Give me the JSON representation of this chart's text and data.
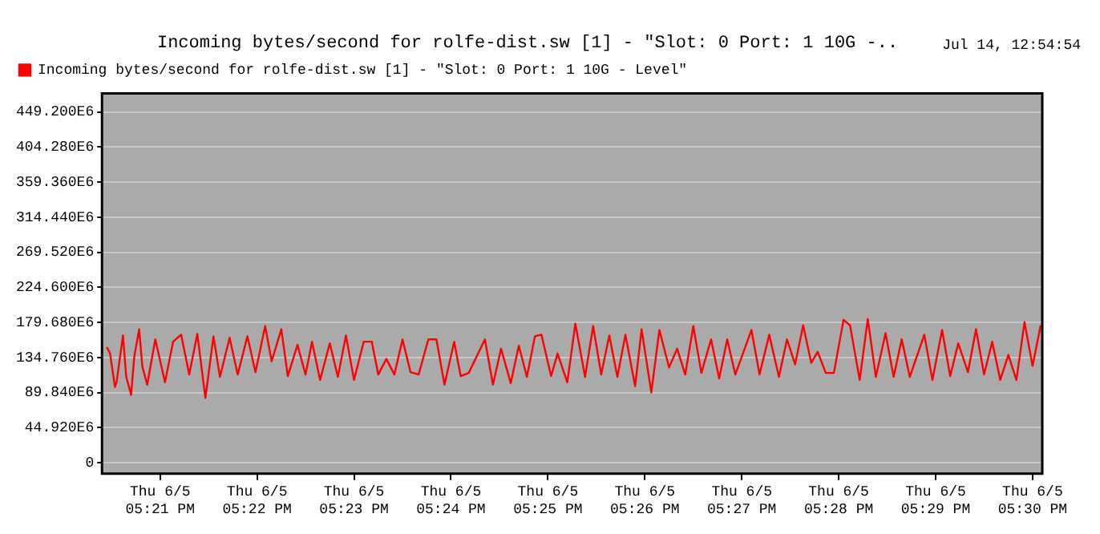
{
  "chart_data": {
    "type": "line",
    "title": "Incoming bytes/second for rolfe-dist.sw [1] - \"Slot: 0 Port: 1 10G -..",
    "annotations": [
      "Jul 14, 12:54:54"
    ],
    "x": [
      "--06-05T17:20:27",
      "--06-05T17:20:29",
      "--06-05T17:20:32",
      "--06-05T17:20:33",
      "--06-05T17:20:37",
      "--06-05T17:20:39",
      "--06-05T17:20:42",
      "--06-05T17:20:44",
      "--06-05T17:20:47",
      "--06-05T17:20:49",
      "--06-05T17:20:52",
      "--06-05T17:20:57",
      "--06-05T17:21:03",
      "--06-05T17:21:08",
      "--06-05T17:21:13",
      "--06-05T17:21:18",
      "--06-05T17:21:23",
      "--06-05T17:21:28",
      "--06-05T17:21:33",
      "--06-05T17:21:37",
      "--06-05T17:21:43",
      "--06-05T17:21:48",
      "--06-05T17:21:54",
      "--06-05T17:21:59",
      "--06-05T17:22:05",
      "--06-05T17:22:09",
      "--06-05T17:22:15",
      "--06-05T17:22:19",
      "--06-05T17:22:25",
      "--06-05T17:22:30",
      "--06-05T17:22:34",
      "--06-05T17:22:39",
      "--06-05T17:22:45",
      "--06-05T17:22:50",
      "--06-05T17:22:55",
      "--06-05T17:23:00",
      "--06-05T17:23:06",
      "--06-05T17:23:11",
      "--06-05T17:23:15",
      "--06-05T17:23:20",
      "--06-05T17:23:25",
      "--06-05T17:23:30",
      "--06-05T17:23:35",
      "--06-05T17:23:40",
      "--06-05T17:23:46",
      "--06-05T17:23:51",
      "--06-05T17:23:56",
      "--06-05T17:24:02",
      "--06-05T17:24:06",
      "--06-05T17:24:11",
      "--06-05T17:24:21",
      "--06-05T17:24:26",
      "--06-05T17:24:31",
      "--06-05T17:24:37",
      "--06-05T17:24:42",
      "--06-05T17:24:47",
      "--06-05T17:24:52",
      "--06-05T17:24:56",
      "--06-05T17:25:02",
      "--06-05T17:25:06",
      "--06-05T17:25:12",
      "--06-05T17:25:17",
      "--06-05T17:25:23",
      "--06-05T17:25:28",
      "--06-05T17:25:33",
      "--06-05T17:25:38",
      "--06-05T17:25:43",
      "--06-05T17:25:48",
      "--06-05T17:25:54",
      "--06-05T17:25:58",
      "--06-05T17:26:04",
      "--06-05T17:26:09",
      "--06-05T17:26:15",
      "--06-05T17:26:20",
      "--06-05T17:26:25",
      "--06-05T17:26:30",
      "--06-05T17:26:35",
      "--06-05T17:26:41",
      "--06-05T17:26:46",
      "--06-05T17:26:51",
      "--06-05T17:26:56",
      "--06-05T17:27:06",
      "--06-05T17:27:11",
      "--06-05T17:27:17",
      "--06-05T17:27:23",
      "--06-05T17:27:28",
      "--06-05T17:27:33",
      "--06-05T17:27:38",
      "--06-05T17:27:43",
      "--06-05T17:27:47",
      "--06-05T17:27:52",
      "--06-05T17:27:57",
      "--06-05T17:28:03",
      "--06-05T17:28:07",
      "--06-05T17:28:13",
      "--06-05T17:28:18",
      "--06-05T17:28:23",
      "--06-05T17:28:29",
      "--06-05T17:28:34",
      "--06-05T17:28:39",
      "--06-05T17:28:44",
      "--06-05T17:28:53",
      "--06-05T17:28:58",
      "--06-05T17:29:04",
      "--06-05T17:29:09",
      "--06-05T17:29:14",
      "--06-05T17:29:20",
      "--06-05T17:29:25",
      "--06-05T17:29:30",
      "--06-05T17:29:35",
      "--06-05T17:29:40",
      "--06-05T17:29:45",
      "--06-05T17:29:50",
      "--06-05T17:29:55",
      "--06-05T17:30:00",
      "--06-05T17:30:05"
    ],
    "series": [
      {
        "name": "Incoming bytes/second for rolfe-dist.sw [1] - \"Slot: 0 Port: 1 10G - Level\"",
        "color": "#ff0000",
        "values": [
          148000000,
          140000000,
          97000000,
          103000000,
          163000000,
          110000000,
          87000000,
          136000000,
          171000000,
          123000000,
          100000000,
          158000000,
          103000000,
          155000000,
          164000000,
          113000000,
          165000000,
          83000000,
          162000000,
          110000000,
          160000000,
          113000000,
          162000000,
          116000000,
          175000000,
          130000000,
          171000000,
          111000000,
          151000000,
          113000000,
          155000000,
          106000000,
          153000000,
          110000000,
          163000000,
          106000000,
          155000000,
          155000000,
          113000000,
          133000000,
          113000000,
          158000000,
          116000000,
          113000000,
          158000000,
          158000000,
          100000000,
          155000000,
          111000000,
          115000000,
          158000000,
          100000000,
          146000000,
          102000000,
          150000000,
          110000000,
          162000000,
          164000000,
          111000000,
          140000000,
          103000000,
          178000000,
          110000000,
          175000000,
          113000000,
          163000000,
          110000000,
          164000000,
          98000000,
          171000000,
          90000000,
          170000000,
          122000000,
          146000000,
          113000000,
          175000000,
          115000000,
          158000000,
          108000000,
          158000000,
          113000000,
          170000000,
          113000000,
          164000000,
          110000000,
          158000000,
          126000000,
          176000000,
          128000000,
          142000000,
          115000000,
          115000000,
          183000000,
          176000000,
          106000000,
          184000000,
          110000000,
          166000000,
          110000000,
          158000000,
          110000000,
          164000000,
          106000000,
          170000000,
          111000000,
          153000000,
          116000000,
          171000000,
          113000000,
          155000000,
          106000000,
          138000000,
          106000000,
          180000000,
          124000000,
          176000000
        ]
      }
    ],
    "xlim": [
      "--06-05T17:20:24",
      "--06-05T17:30:06"
    ],
    "xticks": [
      {
        "value": "--06-05T17:21",
        "label": "Thu 6/5 05:21 PM"
      },
      {
        "value": "--06-05T17:22",
        "label": "Thu 6/5 05:22 PM"
      },
      {
        "value": "--06-05T17:23",
        "label": "Thu 6/5 05:23 PM"
      },
      {
        "value": "--06-05T17:24",
        "label": "Thu 6/5 05:24 PM"
      },
      {
        "value": "--06-05T17:25",
        "label": "Thu 6/5 05:25 PM"
      },
      {
        "value": "--06-05T17:26",
        "label": "Thu 6/5 05:26 PM"
      },
      {
        "value": "--06-05T17:27",
        "label": "Thu 6/5 05:27 PM"
      },
      {
        "value": "--06-05T17:28",
        "label": "Thu 6/5 05:28 PM"
      },
      {
        "value": "--06-05T17:29",
        "label": "Thu 6/5 05:29 PM"
      },
      {
        "value": "--06-05T17:30",
        "label": "Thu 6/5 05:30 PM"
      }
    ],
    "ylim": [
      -14000000,
      473000000
    ],
    "yticks": [
      0,
      {
        "value": 44920000,
        "label": "44.920E6"
      },
      {
        "value": 89840000,
        "label": "89.840E6"
      },
      {
        "value": 134760000,
        "label": "134.760E6"
      },
      {
        "value": 179680000,
        "label": "179.680E6"
      },
      {
        "value": 224600000,
        "label": "224.600E6"
      },
      {
        "value": 269520000,
        "label": "269.520E6"
      },
      {
        "value": 314440000,
        "label": "314.440E6"
      },
      {
        "value": 359360000,
        "label": "359.360E6"
      },
      {
        "value": 404280000,
        "label": "404.280E6"
      },
      {
        "value": 449200000,
        "label": "449.200E6"
      }
    ],
    "grid": "y",
    "legend": "top left",
    "marker": "none",
    "line_style": "solid"
  }
}
